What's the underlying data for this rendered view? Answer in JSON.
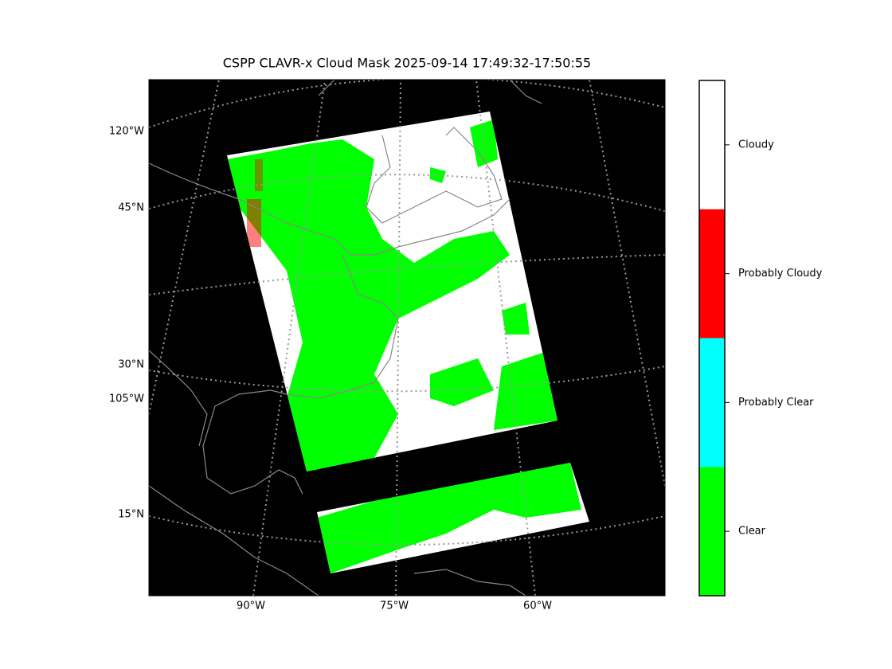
{
  "title": "CSPP CLAVR-x Cloud Mask 2025-09-14 17:49:32-17:50:55",
  "map": {
    "left_labels": [
      "120°W",
      "45°N",
      "30°N",
      "105°W",
      "15°N"
    ],
    "bottom_labels": [
      "90°W",
      "75°W",
      "60°W"
    ]
  },
  "colorbar": {
    "classes": [
      {
        "label": "Cloudy",
        "color": "#ffffff"
      },
      {
        "label": "Probably Cloudy",
        "color": "#ff0000"
      },
      {
        "label": "Probably Clear",
        "color": "#00ffff"
      },
      {
        "label": "Clear",
        "color": "#00ff00"
      }
    ]
  }
}
